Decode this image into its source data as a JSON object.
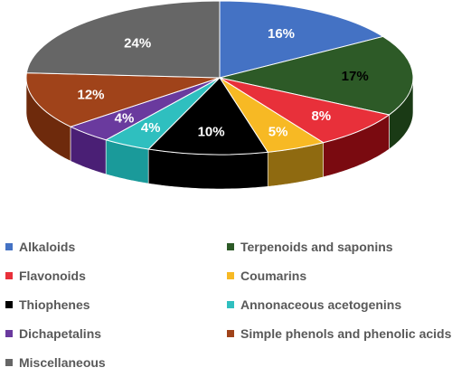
{
  "chart_data": {
    "type": "pie",
    "style": "3d",
    "title": "",
    "legend_placement": "bottom",
    "categories": [
      "Alkaloids",
      "Terpenoids and saponins",
      "Flavonoids",
      "Coumarins",
      "Thiophenes",
      "Annonaceous acetogenins",
      "Dichapetalins",
      "Simple phenols and phenolic acids",
      "Miscellaneous"
    ],
    "values": [
      16,
      17,
      8,
      5,
      10,
      4,
      4,
      12,
      24
    ],
    "data_labels": [
      "16%",
      "17%",
      "8%",
      "5%",
      "10%",
      "4%",
      "4%",
      "12%",
      "24%"
    ],
    "colors": [
      "#4472C4",
      "#2D5A27",
      "#E8303A",
      "#F7B924",
      "#000000",
      "#2FBFBF",
      "#6A3A9E",
      "#A0431A",
      "#666666"
    ],
    "side_colors": [
      "#2E4E86",
      "#1A3A15",
      "#7A0A10",
      "#8F6A10",
      "#000000",
      "#1A9A9A",
      "#4A1F75",
      "#6E2A0C",
      "#3E3E3E"
    ],
    "label_colors": [
      "#FFFFFF",
      "#000000",
      "#FFFFFF",
      "#FFFFFF",
      "#FFFFFF",
      "#FFFFFF",
      "#FFFFFF",
      "#FFFFFF",
      "#FFFFFF"
    ]
  }
}
